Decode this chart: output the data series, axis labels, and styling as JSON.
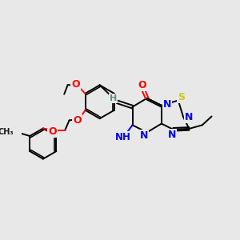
{
  "bg_color": "#e8e8e8",
  "C": "#1a1a1a",
  "H": "#5a9090",
  "N": "#0000ee",
  "O": "#ff0000",
  "S": "#cccc00",
  "figsize": [
    3.0,
    3.0
  ],
  "dpi": 100,
  "lw": 1.4
}
